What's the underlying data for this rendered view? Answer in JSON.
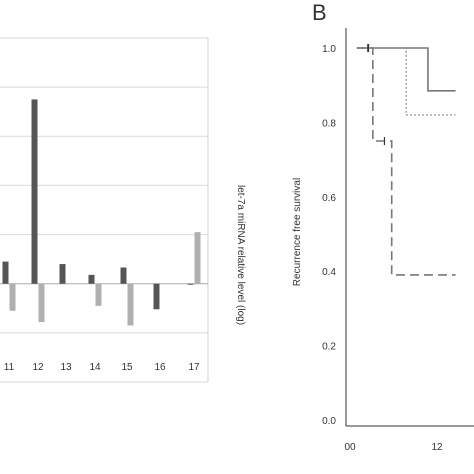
{
  "chart_data": [
    {
      "type": "bar",
      "panel_label": "",
      "categories": [
        "11",
        "12",
        "13",
        "14",
        "15",
        "16",
        "17"
      ],
      "series": [
        {
          "name": "",
          "color": "#555555",
          "values": [
            0.45,
            3.75,
            0.4,
            0.18,
            0.33,
            -0.52,
            -0.02
          ]
        },
        {
          "name": "",
          "color": "#b0b0b0",
          "values": [
            -0.55,
            -0.78,
            0.0,
            -0.45,
            -0.85,
            0.0,
            1.05
          ]
        }
      ],
      "ylim": [
        -2,
        5
      ],
      "grid": true,
      "right_ylabel": "let-7a miRNA relative level (log)"
    },
    {
      "type": "line",
      "panel_label": "B",
      "ylabel": "Recurrence free survival",
      "xlim": [
        -2,
        14
      ],
      "ylim": [
        0,
        1.0
      ],
      "yticks": [
        "0.0",
        "0.2",
        "0.4",
        "0.6",
        "0.8",
        "1.0"
      ],
      "xticks": [
        "00",
        "12"
      ],
      "xtick_values": [
        0,
        12
      ],
      "series": [
        {
          "style": "solid",
          "color": "#777777",
          "points": [
            [
              0.4,
              1.0
            ],
            [
              10.2,
              1.0
            ],
            [
              10.2,
              0.885
            ],
            [
              14,
              0.885
            ]
          ],
          "censor_marks": [
            [
              2,
              1.0
            ]
          ]
        },
        {
          "style": "dotted",
          "color": "#888888",
          "points": [
            [
              0.4,
              1.0
            ],
            [
              7.2,
              1.0
            ],
            [
              7.2,
              0.82
            ],
            [
              14,
              0.82
            ]
          ],
          "censor_marks": []
        },
        {
          "style": "dashed",
          "color": "#777777",
          "points": [
            [
              0.4,
              1.0
            ],
            [
              2.6,
              1.0
            ],
            [
              2.6,
              0.75
            ],
            [
              5.2,
              0.75
            ],
            [
              5.2,
              0.39
            ],
            [
              14,
              0.39
            ]
          ],
          "censor_marks": [
            [
              1.9,
              1.0
            ],
            [
              4.2,
              0.75
            ]
          ]
        }
      ]
    }
  ]
}
